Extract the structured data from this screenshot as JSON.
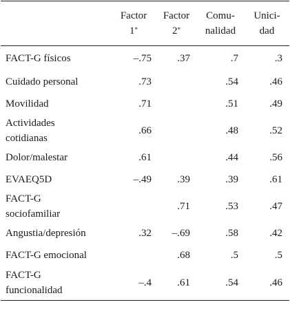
{
  "headers": {
    "variable": "",
    "factor1": {
      "line1": "Factor",
      "line2": "1",
      "mark": "*"
    },
    "factor2": {
      "line1": "Factor",
      "line2": "2",
      "mark": "*"
    },
    "comunalidad": {
      "line1": "Comu-",
      "line2": "nalidad"
    },
    "unicidad": {
      "line1": "Unici-",
      "line2": "dad"
    }
  },
  "rows": [
    {
      "label1": "FACT-G físicos",
      "label2": "",
      "f1": "–.75",
      "f2": ".37",
      "com": ".7",
      "uni": ".3"
    },
    {
      "label1": "Cuidado personal",
      "label2": "",
      "f1": ".73",
      "f2": "",
      "com": ".54",
      "uni": ".46"
    },
    {
      "label1": "Movilidad",
      "label2": "",
      "f1": ".71",
      "f2": "",
      "com": ".51",
      "uni": ".49"
    },
    {
      "label1": "Actividades",
      "label2": "cotidianas",
      "f1": ".66",
      "f2": "",
      "com": ".48",
      "uni": ".52"
    },
    {
      "label1": "Dolor/malestar",
      "label2": "",
      "f1": ".61",
      "f2": "",
      "com": ".44",
      "uni": ".56"
    },
    {
      "label1": "EVAEQ5D",
      "label2": "",
      "f1": "–.49",
      "f2": ".39",
      "com": ".39",
      "uni": ".61"
    },
    {
      "label1": "FACT-G",
      "label2": "sociofamiliar",
      "f1": "",
      "f2": ".71",
      "com": ".53",
      "uni": ".47"
    },
    {
      "label1": "Angustia/depresión",
      "label2": "",
      "f1": ".32",
      "f2": "–.69",
      "com": ".58",
      "uni": ".42"
    },
    {
      "label1": "FACT-G emocional",
      "label2": "",
      "f1": "",
      "f2": ".68",
      "com": ".5",
      "uni": ".5"
    },
    {
      "label1": "FACT-G",
      "label2": "funcionalidad",
      "f1": "–.4",
      "f2": ".61",
      "com": ".54",
      "uni": ".46"
    }
  ]
}
